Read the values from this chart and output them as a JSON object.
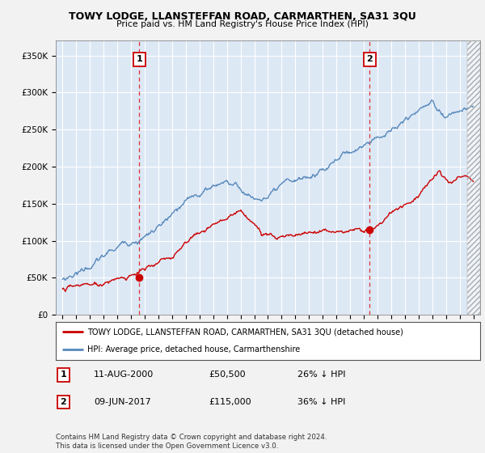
{
  "title": "TOWY LODGE, LLANSTEFFAN ROAD, CARMARTHEN, SA31 3QU",
  "subtitle": "Price paid vs. HM Land Registry's House Price Index (HPI)",
  "ylabel_ticks": [
    "£0",
    "£50K",
    "£100K",
    "£150K",
    "£200K",
    "£250K",
    "£300K",
    "£350K"
  ],
  "ytick_vals": [
    0,
    50000,
    100000,
    150000,
    200000,
    250000,
    300000,
    350000
  ],
  "ylim": [
    0,
    370000
  ],
  "xlim_start": 1994.5,
  "xlim_end": 2025.5,
  "sale1_date": 2000.6,
  "sale1_price": 50500,
  "sale2_date": 2017.44,
  "sale2_price": 115000,
  "legend_line1": "TOWY LODGE, LLANSTEFFAN ROAD, CARMARTHEN, SA31 3QU (detached house)",
  "legend_line2": "HPI: Average price, detached house, Carmarthenshire",
  "table_row1": [
    "1",
    "11-AUG-2000",
    "£50,500",
    "26% ↓ HPI"
  ],
  "table_row2": [
    "2",
    "09-JUN-2017",
    "£115,000",
    "36% ↓ HPI"
  ],
  "footnote": "Contains HM Land Registry data © Crown copyright and database right 2024.\nThis data is licensed under the Open Government Licence v3.0.",
  "line_red_color": "#cc0000",
  "line_blue_color": "#5588bb",
  "background_color": "#f2f2f2",
  "plot_bg_color": "#dde8f5",
  "grid_color": "#aabbcc",
  "dashed_color": "#dd3333",
  "hatch_color": "#aaaaaa"
}
